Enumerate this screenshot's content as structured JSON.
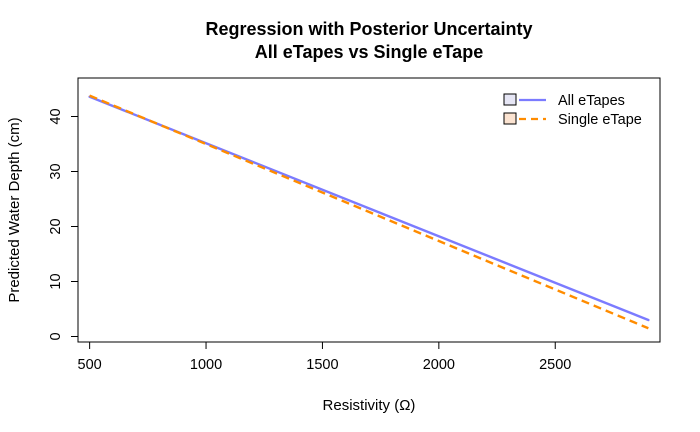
{
  "chart_data": {
    "type": "line",
    "title": "Regression with Posterior Uncertainty",
    "subtitle": "All eTapes vs Single eTape",
    "xlabel": "Resistivity (Ω)",
    "ylabel": "Predicted Water Depth (cm)",
    "xlim": [
      450,
      2950
    ],
    "ylim": [
      -1,
      47
    ],
    "xticks": [
      500,
      1000,
      1500,
      2000,
      2500
    ],
    "yticks": [
      0,
      10,
      20,
      30,
      40
    ],
    "grid": false,
    "legend_position": "top-right",
    "series": [
      {
        "name": "All eTapes",
        "color": "#7b7bff",
        "band_color": "#e6e6f5",
        "line_style": "solid",
        "x": [
          500,
          2900
        ],
        "y": [
          43.6,
          3.0
        ]
      },
      {
        "name": "Single eTape",
        "color": "#ff8c00",
        "band_color": "#fbe3d1",
        "line_style": "dashed",
        "x": [
          500,
          2900
        ],
        "y": [
          43.8,
          1.5
        ]
      }
    ]
  }
}
